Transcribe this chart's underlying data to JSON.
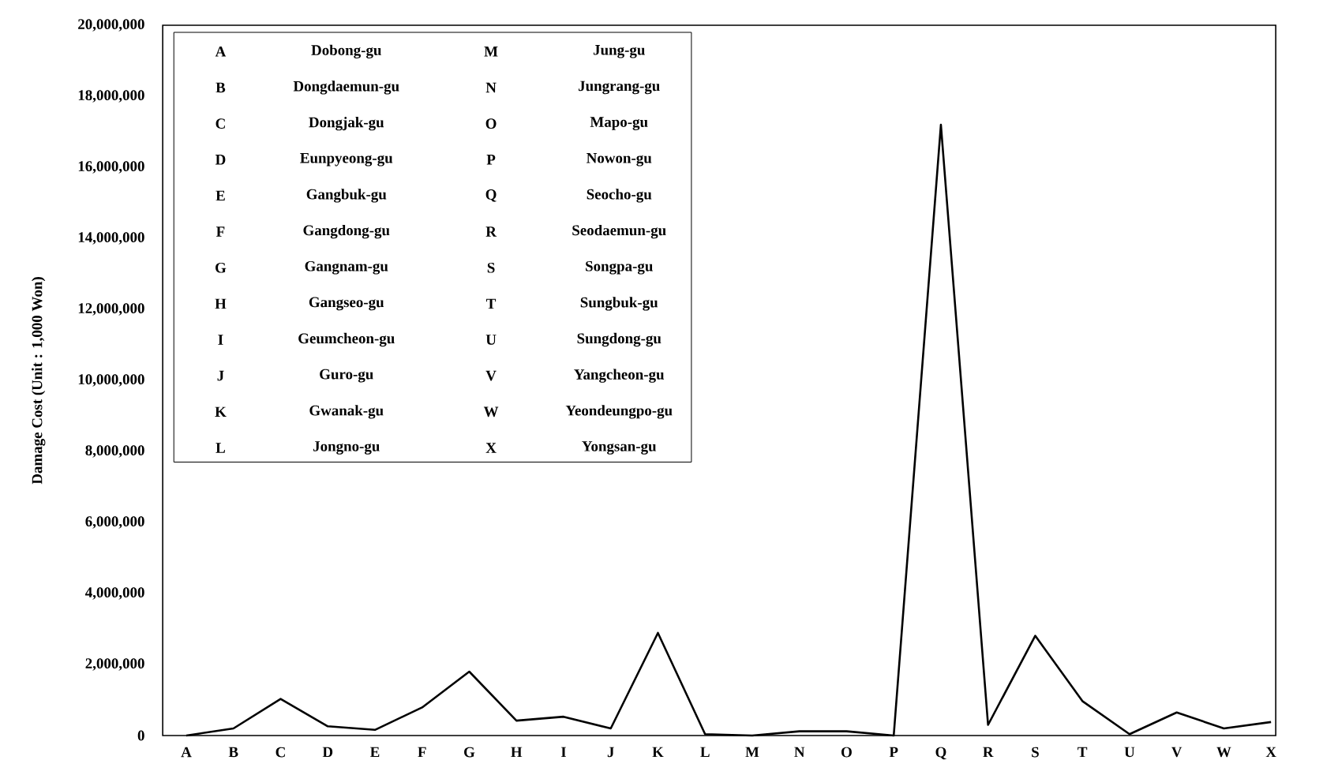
{
  "chart_data": {
    "type": "line",
    "ylabel": "Damage Cost (Unit : 1,000 Won)",
    "categories": [
      "A",
      "B",
      "C",
      "D",
      "E",
      "F",
      "G",
      "H",
      "I",
      "J",
      "K",
      "L",
      "M",
      "N",
      "O",
      "P",
      "Q",
      "R",
      "S",
      "T",
      "U",
      "V",
      "W",
      "X"
    ],
    "series": [
      {
        "color": "#000000",
        "values": [
          0,
          200000,
          1030000,
          260000,
          160000,
          790000,
          1800000,
          420000,
          530000,
          200000,
          2890000,
          40000,
          0,
          120000,
          120000,
          0,
          17200000,
          300000,
          2810000,
          970000,
          40000,
          650000,
          200000,
          380000
        ]
      }
    ],
    "ylim": [
      0,
      20000000
    ],
    "yticks": [
      0,
      {
        "value": 2000000,
        "label": "2,000,000"
      },
      {
        "value": 4000000,
        "label": "4,000,000"
      },
      {
        "value": 6000000,
        "label": "6,000,000"
      },
      {
        "value": 8000000,
        "label": "8,000,000"
      },
      {
        "value": 10000000,
        "label": "10,000,000"
      },
      {
        "value": 12000000,
        "label": "12,000,000"
      },
      {
        "value": 14000000,
        "label": "14,000,000"
      },
      {
        "value": 16000000,
        "label": "16,000,000"
      },
      {
        "value": 18000000,
        "label": "18,000,000"
      },
      {
        "value": 20000000,
        "label": "20,000,000"
      }
    ],
    "grid": false,
    "marker": "none",
    "line_style": "solid",
    "annotations": [
      "A",
      "Dobong-gu",
      "M",
      "Jung-gu",
      "B",
      "Dongdaemun-gu",
      "N",
      "Jungrang-gu",
      "C",
      "Dongjak-gu",
      "O",
      "Mapo-gu",
      "D",
      "Eunpyeong-gu",
      "P",
      "Nowon-gu",
      "E",
      "Gangbuk-gu",
      "Q",
      "Seocho-gu",
      "F",
      "Gangdong-gu",
      "R",
      "Seodaemun-gu",
      "G",
      "Gangnam-gu",
      "S",
      "Songpa-gu",
      "H",
      "Gangseo-gu",
      "T",
      "Sungbuk-gu",
      "I",
      "Geumcheon-gu",
      "U",
      "Sungdong-gu",
      "J",
      "Guro-gu",
      "V",
      "Yangcheon-gu",
      "K",
      "Gwanak-gu",
      "W",
      "Yeondeungpo-gu",
      "L",
      "Jongno-gu",
      "X",
      "Yongsan-gu"
    ]
  }
}
